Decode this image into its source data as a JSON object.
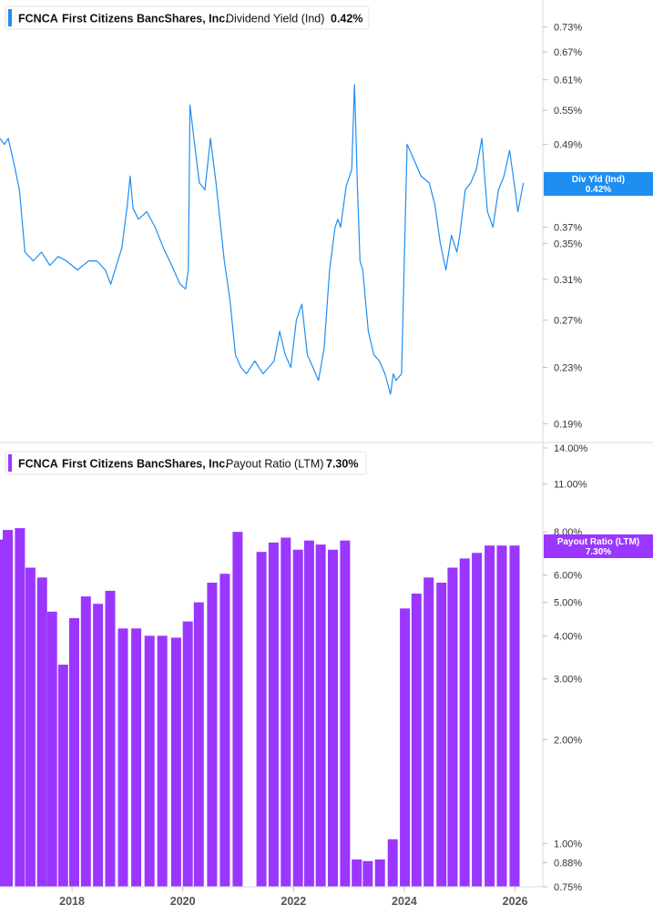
{
  "colors": {
    "yield_line": "#1f8ef1",
    "payout_bar": "#9b36ff",
    "axis_text": "#333333",
    "divider": "#d9d9d9"
  },
  "chart_data": [
    {
      "type": "line",
      "legend": {
        "ticker": "FCNCA",
        "company": "First Citizens BancShares, Inc.",
        "metric": "Dividend Yield (Ind)",
        "value": "0.42%"
      },
      "badge": {
        "line1": "Div Yld (Ind)",
        "line2": "0.42%"
      },
      "y_scale": "log",
      "ylim": [
        0.185,
        0.78
      ],
      "y_ticks": [
        0.73,
        0.67,
        0.61,
        0.55,
        0.49,
        0.37,
        0.35,
        0.31,
        0.27,
        0.23,
        0.19
      ],
      "y_tick_labels": [
        "0.73%",
        "0.67%",
        "0.61%",
        "0.55%",
        "0.49%",
        "0.37%",
        "0.35%",
        "0.31%",
        "0.27%",
        "0.23%",
        "0.19%"
      ],
      "xlim": [
        2016.7,
        2026.5
      ],
      "series": [
        {
          "x": [
            2016.7,
            2016.78,
            2016.85,
            2016.95,
            2017.05,
            2017.15,
            2017.3,
            2017.45,
            2017.6,
            2017.75,
            2017.9,
            2018.1,
            2018.3,
            2018.45,
            2018.6,
            2018.7,
            2018.9,
            2019.0,
            2019.05,
            2019.1,
            2019.2,
            2019.35,
            2019.5,
            2019.65,
            2019.8,
            2019.95,
            2020.05,
            2020.1,
            2020.13,
            2020.2,
            2020.3,
            2020.4,
            2020.5,
            2020.6,
            2020.75,
            2020.85,
            2020.95,
            2021.05,
            2021.15,
            2021.3,
            2021.45,
            2021.55,
            2021.65,
            2021.75,
            2021.85,
            2021.95,
            2022.05,
            2022.15,
            2022.25,
            2022.35,
            2022.45,
            2022.55,
            2022.65,
            2022.75,
            2022.8,
            2022.85,
            2022.95,
            2023.05,
            2023.1,
            2023.13,
            2023.15,
            2023.2,
            2023.25,
            2023.35,
            2023.45,
            2023.55,
            2023.65,
            2023.75,
            2023.8,
            2023.85,
            2023.95,
            2024.05,
            2024.15,
            2024.3,
            2024.45,
            2024.55,
            2024.65,
            2024.75,
            2024.85,
            2024.95,
            2025.0,
            2025.1,
            2025.2,
            2025.3,
            2025.4,
            2025.45,
            2025.5,
            2025.6,
            2025.7,
            2025.8,
            2025.9,
            2026.0,
            2026.05,
            2026.15
          ],
          "values": [
            0.5,
            0.49,
            0.5,
            0.46,
            0.42,
            0.34,
            0.33,
            0.34,
            0.325,
            0.335,
            0.33,
            0.32,
            0.33,
            0.33,
            0.32,
            0.305,
            0.345,
            0.4,
            0.44,
            0.395,
            0.38,
            0.39,
            0.37,
            0.345,
            0.325,
            0.305,
            0.3,
            0.32,
            0.56,
            0.5,
            0.43,
            0.42,
            0.5,
            0.43,
            0.33,
            0.29,
            0.24,
            0.23,
            0.225,
            0.235,
            0.225,
            0.23,
            0.235,
            0.26,
            0.24,
            0.23,
            0.27,
            0.285,
            0.24,
            0.23,
            0.22,
            0.245,
            0.32,
            0.37,
            0.38,
            0.37,
            0.425,
            0.45,
            0.6,
            0.5,
            0.43,
            0.33,
            0.32,
            0.26,
            0.24,
            0.235,
            0.225,
            0.21,
            0.225,
            0.22,
            0.225,
            0.49,
            0.47,
            0.44,
            0.43,
            0.4,
            0.35,
            0.32,
            0.36,
            0.34,
            0.36,
            0.42,
            0.43,
            0.45,
            0.5,
            0.44,
            0.39,
            0.37,
            0.42,
            0.44,
            0.48,
            0.42,
            0.39,
            0.43
          ]
        }
      ]
    },
    {
      "type": "bar",
      "legend": {
        "ticker": "FCNCA",
        "company": "First Citizens BancShares, Inc.",
        "metric": "Payout Ratio (LTM)",
        "value": "7.30%"
      },
      "badge": {
        "line1": "Payout Ratio (LTM)",
        "line2": "7.30%"
      },
      "y_scale": "log",
      "ylim": [
        0.75,
        14.0
      ],
      "y_ticks": [
        14.0,
        11.0,
        8.0,
        6.0,
        5.0,
        4.0,
        3.0,
        2.0,
        1.0,
        0.88,
        0.75
      ],
      "y_tick_labels": [
        "14.00%",
        "11.00%",
        "8.00%",
        "6.00%",
        "5.00%",
        "4.00%",
        "3.00%",
        "2.00%",
        "1.00%",
        "0.88%",
        "0.75%"
      ],
      "xlim": [
        2016.7,
        2026.5
      ],
      "x_ticks": [
        2018,
        2020,
        2022,
        2024,
        2026
      ],
      "x_tick_labels": [
        "2018",
        "2020",
        "2022",
        "2024",
        "2026"
      ],
      "x": [
        2016.69,
        2016.84,
        2017.06,
        2017.25,
        2017.46,
        2017.64,
        2017.84,
        2018.04,
        2018.25,
        2018.47,
        2018.69,
        2018.92,
        2019.16,
        2019.4,
        2019.63,
        2019.88,
        2020.09,
        2020.29,
        2020.53,
        2020.76,
        2020.99,
        2021.42,
        2021.64,
        2021.86,
        2022.08,
        2022.28,
        2022.49,
        2022.71,
        2022.93,
        2023.14,
        2023.34,
        2023.56,
        2023.79,
        2024.01,
        2024.22,
        2024.44,
        2024.67,
        2024.87,
        2025.09,
        2025.31,
        2025.54,
        2025.76,
        2025.99
      ],
      "values": [
        7.6,
        8.1,
        8.2,
        6.3,
        5.9,
        4.7,
        3.3,
        4.5,
        5.2,
        4.95,
        5.4,
        4.2,
        4.2,
        4.0,
        4.0,
        3.95,
        4.4,
        5.0,
        5.7,
        6.05,
        8.0,
        7.0,
        7.45,
        7.7,
        7.1,
        7.55,
        7.35,
        7.1,
        7.55,
        0.9,
        0.89,
        0.9,
        1.03,
        4.8,
        5.3,
        5.9,
        5.7,
        6.3,
        6.7,
        6.95,
        7.3,
        7.3,
        7.3
      ]
    }
  ]
}
